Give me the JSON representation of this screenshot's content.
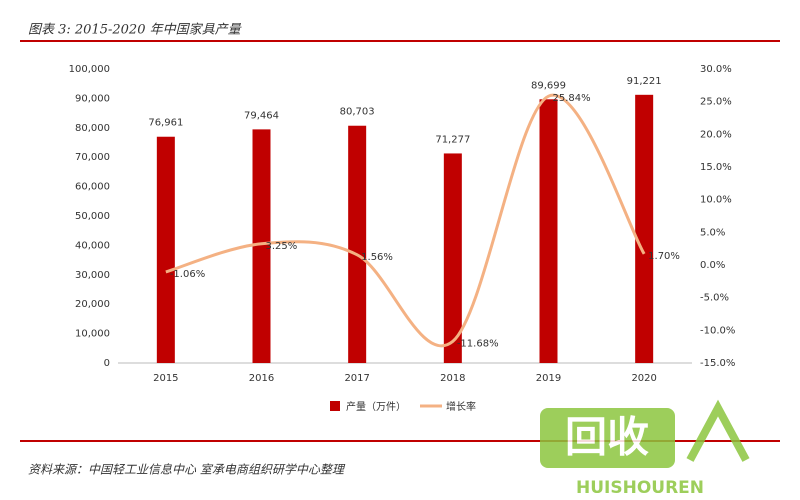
{
  "chart_data": {
    "type": "bar-line",
    "title": "图表 3: 2015-2020 年中国家具产量",
    "source": "资料来源：中国轻工业信息中心 室承电商组织研学中心整理",
    "categories": [
      "2015",
      "2016",
      "2017",
      "2018",
      "2019",
      "2020"
    ],
    "series": [
      {
        "name": "产量（万件）",
        "type": "bar",
        "color": "#c00000",
        "values": [
          76961,
          79464,
          80703,
          71277,
          89699,
          91221
        ],
        "value_labels": [
          "76,961",
          "79,464",
          "80,703",
          "71,277",
          "89,699",
          "91,221"
        ]
      },
      {
        "name": "增长率",
        "type": "line",
        "axis": "y2",
        "color": "#f4b183",
        "values": [
          -1.06,
          3.25,
          1.56,
          -11.68,
          25.84,
          1.7
        ],
        "value_labels": [
          "-1.06%",
          "3.25%",
          "1.56%",
          "-11.68%",
          "25.84%",
          "1.70%"
        ]
      }
    ],
    "ylim": [
      0,
      100000
    ],
    "yticks": [
      0,
      {
        "value": 10000,
        "label": "10,000"
      },
      {
        "value": 20000,
        "label": "20,000"
      },
      {
        "value": 30000,
        "label": "30,000"
      },
      {
        "value": 40000,
        "label": "40,000"
      },
      {
        "value": 50000,
        "label": "50,000"
      },
      {
        "value": 60000,
        "label": "60,000"
      },
      {
        "value": 70000,
        "label": "70,000"
      },
      {
        "value": 80000,
        "label": "80,000"
      },
      {
        "value": 90000,
        "label": "90,000"
      },
      {
        "value": 100000,
        "label": "100,000"
      }
    ],
    "y2lim": [
      -15,
      30
    ],
    "y2ticks": [
      {
        "value": -15,
        "label": "-15.0%"
      },
      {
        "value": -10,
        "label": "-10.0%"
      },
      {
        "value": -5,
        "label": "-5.0%"
      },
      {
        "value": 0,
        "label": "0.0%"
      },
      {
        "value": 5,
        "label": "5.0%"
      },
      {
        "value": 10,
        "label": "10.0%"
      },
      {
        "value": 15,
        "label": "15.0%"
      },
      {
        "value": 20,
        "label": "20.0%"
      },
      {
        "value": 25,
        "label": "25.0%"
      },
      {
        "value": 30,
        "label": "30.0%"
      }
    ],
    "legend": "bottom",
    "watermark": {
      "text": "回收",
      "brand": "HUISHOUREN"
    }
  }
}
